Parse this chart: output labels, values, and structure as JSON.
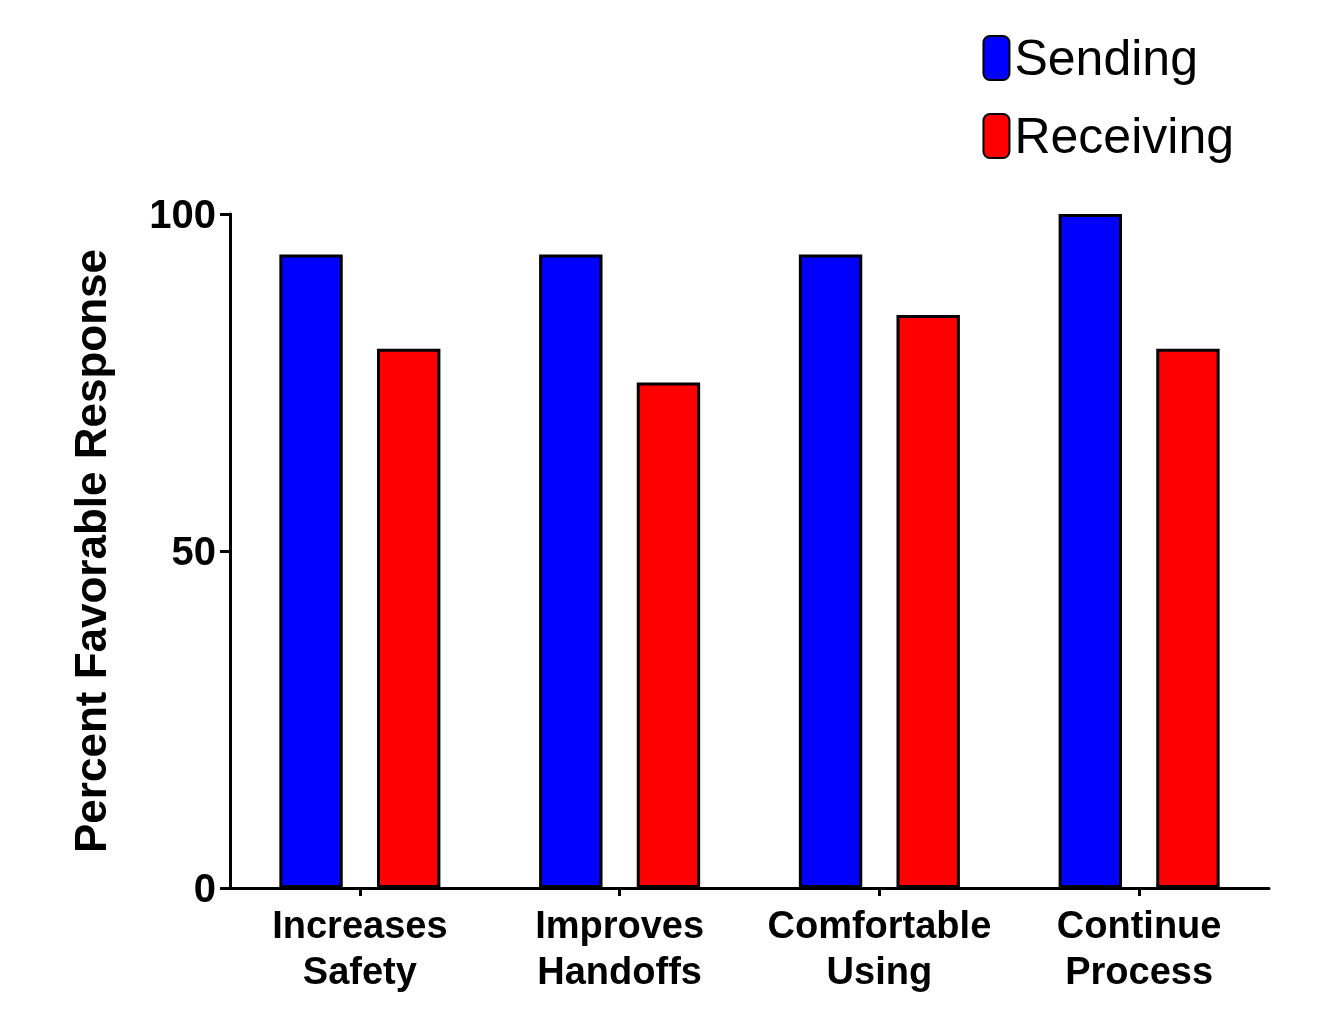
{
  "chart_data": {
    "type": "bar",
    "ylabel": "Percent Favorable Response",
    "categories": [
      "Increases\nSafety",
      "Improves\nHandoffs",
      "Comfortable\nUsing",
      "Continue\nProcess"
    ],
    "series": [
      {
        "name": "Sending",
        "color": "#0000ff",
        "values": [
          94,
          94,
          94,
          100
        ]
      },
      {
        "name": "Receiving",
        "color": "#ff0000",
        "values": [
          80,
          75,
          85,
          80
        ]
      }
    ],
    "ylim": [
      0,
      100
    ],
    "yticks": [
      0,
      50,
      100
    ],
    "grid": false,
    "legend": "top right"
  }
}
